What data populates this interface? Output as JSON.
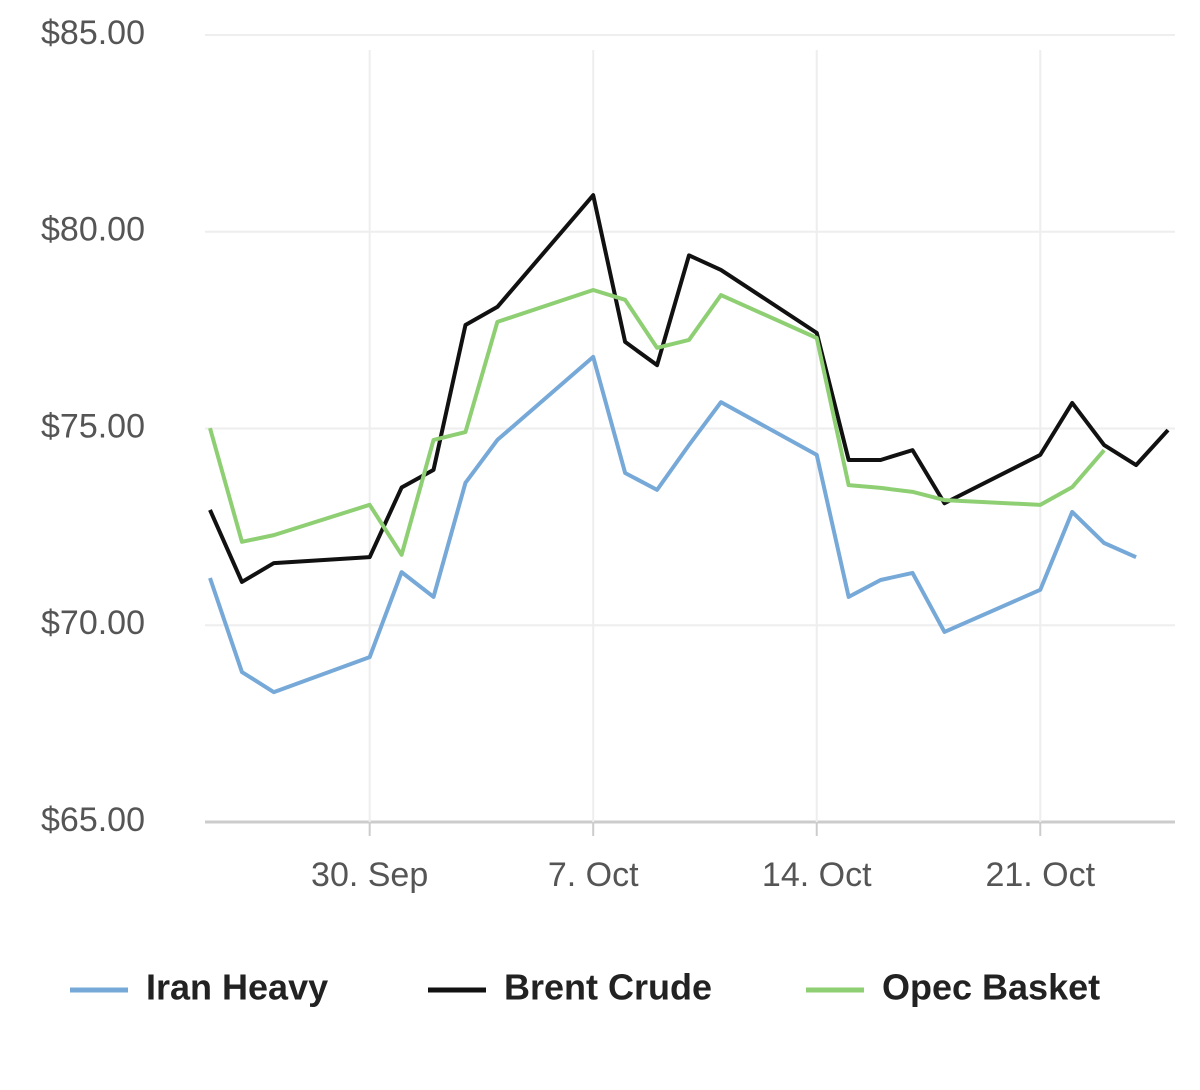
{
  "chart_data": {
    "type": "line",
    "x": [
      "25. Sep",
      "26. Sep",
      "27. Sep",
      "30. Sep",
      "1. Oct",
      "2. Oct",
      "3. Oct",
      "4. Oct",
      "7. Oct",
      "8. Oct",
      "9. Oct",
      "10. Oct",
      "11. Oct",
      "14. Oct",
      "15. Oct",
      "16. Oct",
      "17. Oct",
      "18. Oct",
      "21. Oct",
      "22. Oct",
      "23. Oct",
      "24. Oct",
      "25. Oct"
    ],
    "series": [
      {
        "name": "Iran Heavy",
        "color": "#76a9d8",
        "values": [
          71.2,
          68.81,
          68.3,
          69.19,
          71.35,
          70.72,
          73.62,
          74.71,
          76.82,
          73.87,
          73.44,
          74.58,
          75.67,
          74.33,
          70.72,
          71.15,
          71.33,
          69.83,
          70.9,
          72.88,
          72.09,
          71.73,
          null
        ]
      },
      {
        "name": "Brent Crude",
        "color": "#111111",
        "values": [
          72.93,
          71.1,
          71.58,
          71.73,
          73.5,
          73.95,
          77.63,
          78.09,
          80.93,
          77.2,
          76.61,
          79.4,
          79.03,
          77.43,
          74.2,
          74.2,
          74.45,
          73.1,
          74.33,
          75.65,
          74.58,
          74.07,
          74.96
        ]
      },
      {
        "name": "Opec Basket",
        "color": "#8fcf73",
        "values": [
          75.01,
          72.12,
          72.29,
          73.06,
          71.79,
          74.71,
          74.91,
          77.71,
          78.52,
          78.27,
          77.05,
          77.25,
          78.39,
          77.3,
          73.56,
          73.49,
          73.39,
          73.18,
          73.06,
          73.51,
          74.45,
          null,
          null
        ]
      }
    ],
    "xlim": [
      "25. Sep",
      "25. Oct"
    ],
    "xticks": [
      "30. Sep",
      "7. Oct",
      "14. Oct",
      "21. Oct"
    ],
    "ylim": [
      65,
      85
    ],
    "yticks": [
      {
        "value": 65,
        "label": "$65.00"
      },
      {
        "value": 70,
        "label": "$70.00"
      },
      {
        "value": 75,
        "label": "$75.00"
      },
      {
        "value": 80,
        "label": "$80.00"
      },
      {
        "value": 85,
        "label": "$85.00"
      }
    ],
    "grid": true,
    "legend": "bottom"
  }
}
